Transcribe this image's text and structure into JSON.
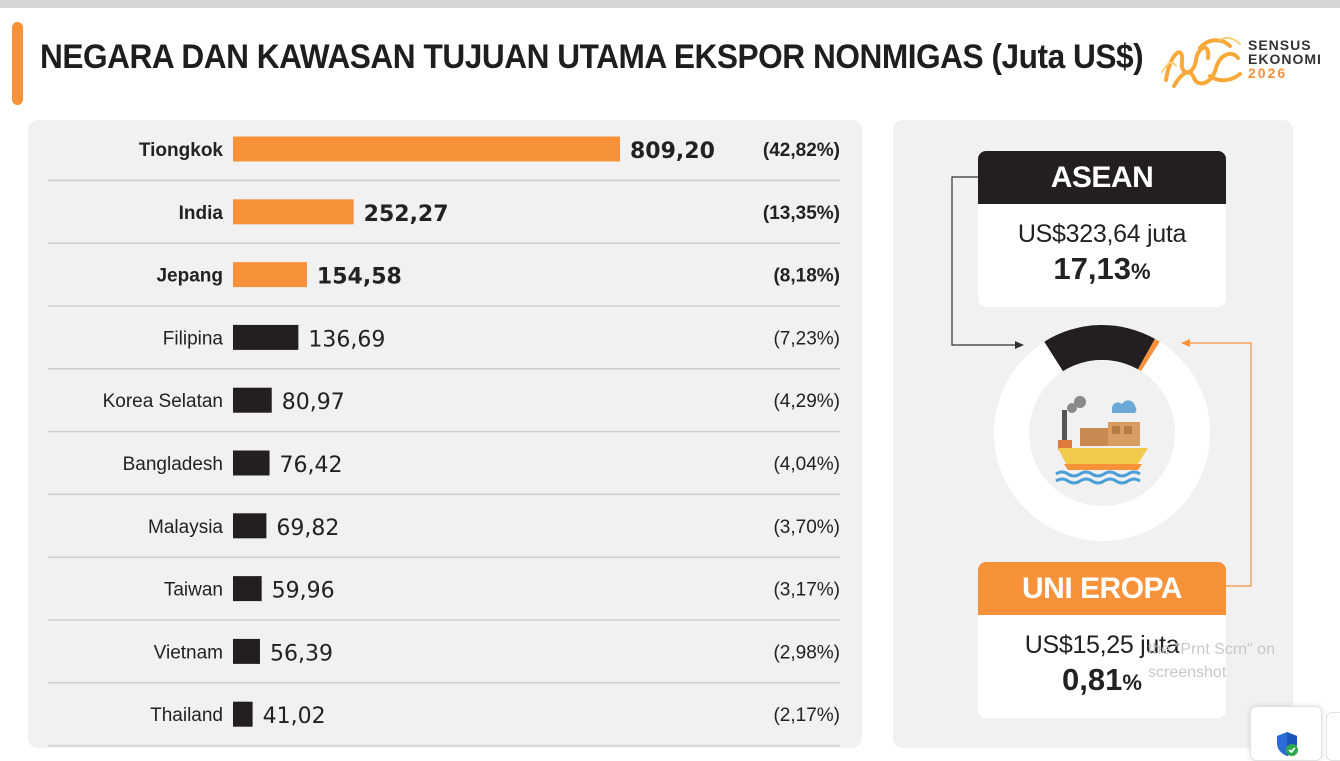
{
  "title": "NEGARA DAN KAWASAN TUJUAN UTAMA EKSPOR NONMIGAS (Juta US$)",
  "logo": {
    "line1": "SENSUS",
    "line2": "EKONOMI",
    "line3": "2026"
  },
  "colors": {
    "accent": "#f7923a",
    "dark": "#231f20",
    "panel": "#f1f1f1"
  },
  "chart_data": {
    "type": "bar",
    "orientation": "horizontal",
    "title": "NEGARA DAN KAWASAN TUJUAN UTAMA EKSPOR NONMIGAS (Juta US$)",
    "categories": [
      "Tiongkok",
      "India",
      "Jepang",
      "Filipina",
      "Korea Selatan",
      "Bangladesh",
      "Malaysia",
      "Taiwan",
      "Vietnam",
      "Thailand"
    ],
    "values": [
      809.2,
      252.27,
      154.58,
      136.69,
      80.97,
      76.42,
      69.82,
      59.96,
      56.39,
      41.02
    ],
    "value_labels": [
      "809,20",
      "252,27",
      "154,58",
      "136,69",
      "80,97",
      "76,42",
      "69,82",
      "59,96",
      "56,39",
      "41,02"
    ],
    "shares": [
      "(42,82%)",
      "(13,35%)",
      "(8,18%)",
      "(7,23%)",
      "(4,29%)",
      "(4,04%)",
      "(3,70%)",
      "(3,17%)",
      "(2,98%)",
      "(2,17%)"
    ],
    "highlight_top": 3,
    "highlight_color": "#f7923a",
    "other_color": "#231f20",
    "grid": false,
    "legend": "none"
  },
  "regions": {
    "asean": {
      "name": "ASEAN",
      "value": "US$323,64 juta",
      "pct_number": "17,13",
      "pct_sign": "%",
      "share": 17.13
    },
    "eu": {
      "name": "UNI EROPA",
      "value": "US$15,25 juta",
      "pct_number": "0,81",
      "pct_sign": "%",
      "share": 0.81
    }
  },
  "watermark": {
    "line1": "the \"Prnt Scrn\" on",
    "line2": "screenshot"
  },
  "icons": [
    "cargo-ship-icon",
    "shield-check-icon",
    "sensus-logo-icon"
  ]
}
